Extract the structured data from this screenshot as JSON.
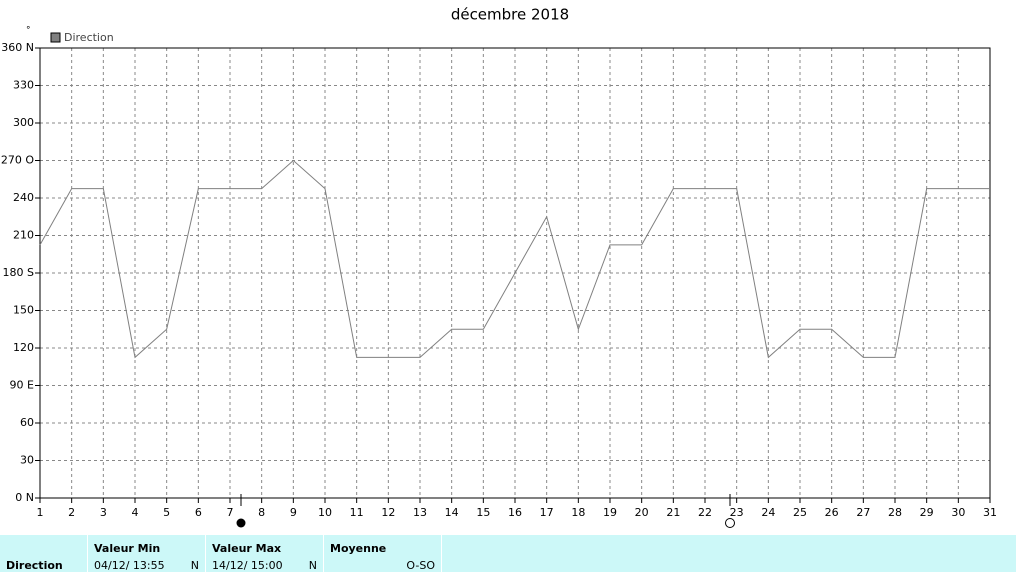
{
  "chart_data": {
    "type": "line",
    "title": "décembre 2018",
    "y_unit": "°",
    "x": [
      1,
      2,
      3,
      4,
      5,
      6,
      7,
      8,
      9,
      10,
      11,
      12,
      13,
      14,
      15,
      16,
      17,
      18,
      19,
      20,
      21,
      22,
      23,
      24,
      25,
      26,
      27,
      28,
      29,
      30,
      31
    ],
    "xlim": [
      1,
      31
    ],
    "xticks": [
      1,
      2,
      3,
      4,
      5,
      6,
      7,
      8,
      9,
      10,
      11,
      12,
      13,
      14,
      15,
      16,
      17,
      18,
      19,
      20,
      21,
      22,
      23,
      24,
      25,
      26,
      27,
      28,
      29,
      30,
      31
    ],
    "ylim": [
      0,
      360
    ],
    "yticks": [
      {
        "value": 0,
        "label": "0 N"
      },
      30,
      60,
      {
        "value": 90,
        "label": "90 E"
      },
      120,
      150,
      {
        "value": 180,
        "label": "180 S"
      },
      210,
      240,
      {
        "value": 270,
        "label": "270 O"
      },
      300,
      330,
      {
        "value": 360,
        "label": "360 N"
      }
    ],
    "grid": true,
    "series": [
      {
        "name": "Direction",
        "color": "#808080",
        "values": [
          202.5,
          247.5,
          247.5,
          112.5,
          135,
          247.5,
          247.5,
          247.5,
          270,
          247.5,
          112.5,
          112.5,
          112.5,
          135,
          135,
          180,
          225,
          135,
          202.5,
          202.5,
          247.5,
          247.5,
          247.5,
          112.5,
          135,
          135,
          112.5,
          112.5,
          247.5,
          247.5,
          247.5
        ]
      }
    ]
  },
  "summary": {
    "row_label": "Direction",
    "columns": [
      {
        "header": "Valeur Min",
        "date": "04/12/ 13:55",
        "value": "N"
      },
      {
        "header": "Valeur Max",
        "date": "14/12/ 15:00",
        "value": "N"
      },
      {
        "header": "Moyenne",
        "value": "O-SO"
      }
    ]
  }
}
